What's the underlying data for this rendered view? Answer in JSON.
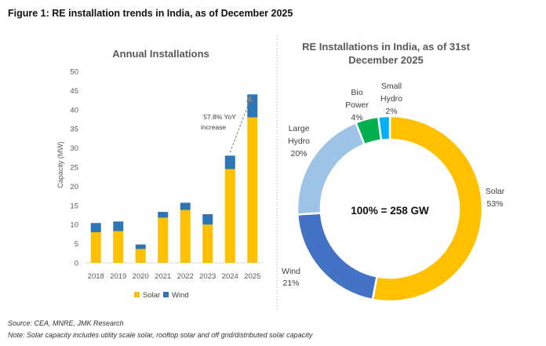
{
  "figure_title": "Figure 1: RE installation trends in India, as of December 2025",
  "source": "Source: CEA, MNRE, JMK Research",
  "note": "Note: Solar capacity includes utility scale solar, rooftop solar and off grid/distributed solar capacity",
  "colors": {
    "solar": "#FFC000",
    "wind": "#2E75B6",
    "large_hydro": "#9DC3E6",
    "bio_power": "#00B050",
    "small_hydro": "#00B0F0",
    "wind_donut": "#4472C4"
  },
  "chart_data": [
    {
      "type": "bar",
      "stacked": true,
      "title": "Annual Installations",
      "xlabel": "",
      "ylabel": "Capacity (MW)",
      "ylim": [
        0,
        50
      ],
      "yticks": [
        0,
        5,
        10,
        15,
        20,
        25,
        30,
        35,
        40,
        45,
        50
      ],
      "categories": [
        "2018",
        "2019",
        "2020",
        "2021",
        "2022",
        "2023",
        "2024",
        "2025"
      ],
      "series": [
        {
          "name": "Solar",
          "values": [
            8.0,
            8.3,
            3.6,
            11.8,
            13.8,
            10.0,
            24.5,
            38.0
          ]
        },
        {
          "name": "Wind",
          "values": [
            2.4,
            2.5,
            1.2,
            1.5,
            1.9,
            2.7,
            3.5,
            6.0
          ]
        }
      ],
      "annotation": {
        "text_lines": [
          "57.8% YoY",
          "increase"
        ],
        "from": "2024",
        "to": "2025"
      },
      "grid": false,
      "legend": "bottom"
    },
    {
      "type": "pie",
      "donut": true,
      "title_lines": [
        "RE Installations in India, as of 31st",
        "December 2025"
      ],
      "center_label": "100% = 258 GW",
      "slices": [
        {
          "label": "Solar",
          "value": 53,
          "pct": "53%"
        },
        {
          "label": "Wind",
          "value": 21,
          "pct": "21%"
        },
        {
          "label_lines": [
            "Large",
            "Hydro"
          ],
          "value": 20,
          "pct": "20%"
        },
        {
          "label_lines": [
            "Bio",
            "Power"
          ],
          "value": 4,
          "pct": "4%"
        },
        {
          "label_lines": [
            "Small",
            "Hydro"
          ],
          "value": 2,
          "pct": "2%"
        }
      ]
    }
  ]
}
